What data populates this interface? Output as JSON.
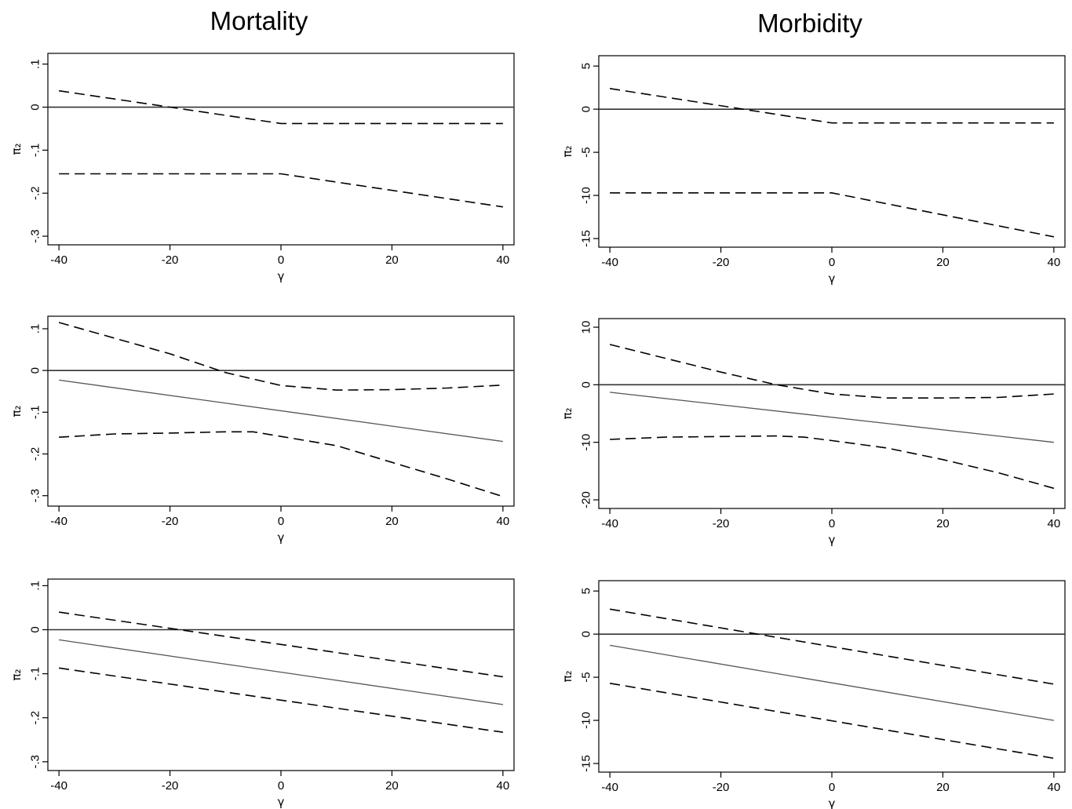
{
  "column_titles": [
    "Mortality",
    "Morbidity"
  ],
  "chart_data": [
    {
      "type": "line",
      "row": 0,
      "col": 0,
      "xlabel": "γ",
      "ylabel": "π₂",
      "xlim": [
        -42,
        42
      ],
      "ylim": [
        -0.32,
        0.125
      ],
      "xticks": [
        -40,
        -20,
        0,
        20,
        40
      ],
      "xtick_labels": [
        "-40",
        "-20",
        "0",
        "20",
        "40"
      ],
      "yticks": [
        -0.3,
        -0.2,
        -0.1,
        0,
        0.1
      ],
      "ytick_labels": [
        "-.3",
        "-.2",
        "-.1",
        "0",
        ".1"
      ],
      "zero_line": 0,
      "series": [
        {
          "style": "dashed",
          "x": [
            -40,
            0,
            40
          ],
          "y": [
            0.038,
            -0.038,
            -0.038
          ]
        },
        {
          "style": "dashed",
          "x": [
            -40,
            0,
            40
          ],
          "y": [
            -0.155,
            -0.155,
            -0.232
          ]
        }
      ]
    },
    {
      "type": "line",
      "row": 0,
      "col": 1,
      "xlabel": "γ",
      "ylabel": "π₂",
      "xlim": [
        -42,
        42
      ],
      "ylim": [
        -16,
        6.2
      ],
      "xticks": [
        -40,
        -20,
        0,
        20,
        40
      ],
      "xtick_labels": [
        "-40",
        "-20",
        "0",
        "20",
        "40"
      ],
      "yticks": [
        -15,
        -10,
        -5,
        0,
        5
      ],
      "ytick_labels": [
        "-15",
        "-10",
        "-5",
        "0",
        "5"
      ],
      "zero_line": 0,
      "series": [
        {
          "style": "dashed",
          "x": [
            -40,
            0,
            40
          ],
          "y": [
            2.4,
            -1.6,
            -1.6
          ]
        },
        {
          "style": "dashed",
          "x": [
            -40,
            0,
            40
          ],
          "y": [
            -9.7,
            -9.7,
            -14.8
          ]
        }
      ]
    },
    {
      "type": "line",
      "row": 1,
      "col": 0,
      "xlabel": "γ",
      "ylabel": "π₂",
      "xlim": [
        -42,
        42
      ],
      "ylim": [
        -0.325,
        0.13
      ],
      "xticks": [
        -40,
        -20,
        0,
        20,
        40
      ],
      "xtick_labels": [
        "-40",
        "-20",
        "0",
        "20",
        "40"
      ],
      "yticks": [
        -0.3,
        -0.2,
        -0.1,
        0,
        0.1
      ],
      "ytick_labels": [
        "-.3",
        "-.2",
        "-.1",
        "0",
        ".1"
      ],
      "zero_line": 0,
      "series": [
        {
          "style": "solid",
          "x": [
            -40,
            40
          ],
          "y": [
            -0.023,
            -0.17
          ]
        },
        {
          "style": "dashed",
          "x": [
            -40,
            -20,
            -10,
            0,
            10,
            20,
            30,
            40
          ],
          "y": [
            0.115,
            0.04,
            -0.005,
            -0.036,
            -0.047,
            -0.046,
            -0.042,
            -0.035
          ]
        },
        {
          "style": "dashed",
          "x": [
            -40,
            -30,
            -20,
            -10,
            -5,
            0,
            10,
            20,
            30,
            40
          ],
          "y": [
            -0.16,
            -0.152,
            -0.15,
            -0.147,
            -0.147,
            -0.158,
            -0.18,
            -0.22,
            -0.26,
            -0.302
          ]
        }
      ]
    },
    {
      "type": "line",
      "row": 1,
      "col": 1,
      "xlabel": "γ",
      "ylabel": "π₂",
      "xlim": [
        -42,
        42
      ],
      "ylim": [
        -21.5,
        11.5
      ],
      "xticks": [
        -40,
        -20,
        0,
        20,
        40
      ],
      "xtick_labels": [
        "-40",
        "-20",
        "0",
        "20",
        "40"
      ],
      "yticks": [
        -20,
        -10,
        0,
        10
      ],
      "ytick_labels": [
        "-20",
        "-10",
        "0",
        "10"
      ],
      "zero_line": 0,
      "series": [
        {
          "style": "solid",
          "x": [
            -40,
            40
          ],
          "y": [
            -1.3,
            -10
          ]
        },
        {
          "style": "dashed",
          "x": [
            -40,
            -20,
            -10,
            0,
            10,
            20,
            30,
            40
          ],
          "y": [
            7,
            2.2,
            0,
            -1.6,
            -2.3,
            -2.3,
            -2.2,
            -1.6
          ]
        },
        {
          "style": "dashed",
          "x": [
            -40,
            -30,
            -20,
            -10,
            -5,
            0,
            10,
            20,
            30,
            40
          ],
          "y": [
            -9.5,
            -9.1,
            -9,
            -8.9,
            -9.1,
            -9.7,
            -11,
            -13,
            -15.3,
            -18
          ]
        }
      ]
    },
    {
      "type": "line",
      "row": 2,
      "col": 0,
      "xlabel": "γ",
      "ylabel": "π₂",
      "xlim": [
        -42,
        42
      ],
      "ylim": [
        -0.32,
        0.115
      ],
      "xticks": [
        -40,
        -20,
        0,
        20,
        40
      ],
      "xtick_labels": [
        "-40",
        "-20",
        "0",
        "20",
        "40"
      ],
      "yticks": [
        -0.3,
        -0.2,
        -0.1,
        0,
        0.1
      ],
      "ytick_labels": [
        "-.3",
        "-.2",
        "-.1",
        "0",
        ".1"
      ],
      "zero_line": 0,
      "series": [
        {
          "style": "solid",
          "x": [
            -40,
            40
          ],
          "y": [
            -0.023,
            -0.17
          ]
        },
        {
          "style": "dashed",
          "x": [
            -40,
            40
          ],
          "y": [
            0.04,
            -0.107
          ]
        },
        {
          "style": "dashed",
          "x": [
            -40,
            40
          ],
          "y": [
            -0.087,
            -0.233
          ]
        }
      ]
    },
    {
      "type": "line",
      "row": 2,
      "col": 1,
      "xlabel": "γ",
      "ylabel": "π₂",
      "xlim": [
        -42,
        42
      ],
      "ylim": [
        -16,
        6.2
      ],
      "xticks": [
        -40,
        -20,
        0,
        20,
        40
      ],
      "xtick_labels": [
        "-40",
        "-20",
        "0",
        "20",
        "40"
      ],
      "yticks": [
        -15,
        -10,
        -5,
        0,
        5
      ],
      "ytick_labels": [
        "-15",
        "-10",
        "-5",
        "0",
        "5"
      ],
      "zero_line": 0,
      "series": [
        {
          "style": "solid",
          "x": [
            -40,
            40
          ],
          "y": [
            -1.3,
            -10
          ]
        },
        {
          "style": "dashed",
          "x": [
            -40,
            40
          ],
          "y": [
            2.9,
            -5.8
          ]
        },
        {
          "style": "dashed",
          "x": [
            -40,
            40
          ],
          "y": [
            -5.7,
            -14.4
          ]
        }
      ]
    }
  ]
}
